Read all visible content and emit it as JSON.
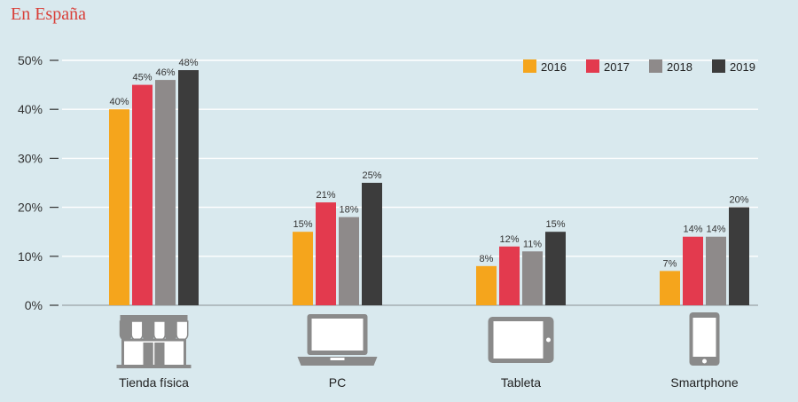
{
  "header": {
    "title": "En España"
  },
  "chart_data": {
    "type": "bar",
    "title": "",
    "xlabel": "",
    "ylabel": "",
    "ylim": [
      0,
      50
    ],
    "y_ticks": [
      "0%",
      "10%",
      "20%",
      "30%",
      "40%",
      "50%"
    ],
    "grid": true,
    "legend_position": "top-right",
    "categories": [
      "Tienda física",
      "PC",
      "Tableta",
      "Smartphone"
    ],
    "category_icons": [
      "store-icon",
      "laptop-icon",
      "tablet-icon",
      "smartphone-icon"
    ],
    "series": [
      {
        "name": "2016",
        "color": "#f5a51c",
        "values": [
          40,
          15,
          8,
          7
        ]
      },
      {
        "name": "2017",
        "color": "#e33a4e",
        "values": [
          45,
          21,
          12,
          14
        ]
      },
      {
        "name": "2018",
        "color": "#8e8a8a",
        "values": [
          46,
          18,
          11,
          14
        ]
      },
      {
        "name": "2019",
        "color": "#3c3c3c",
        "values": [
          48,
          25,
          15,
          20
        ]
      }
    ]
  }
}
